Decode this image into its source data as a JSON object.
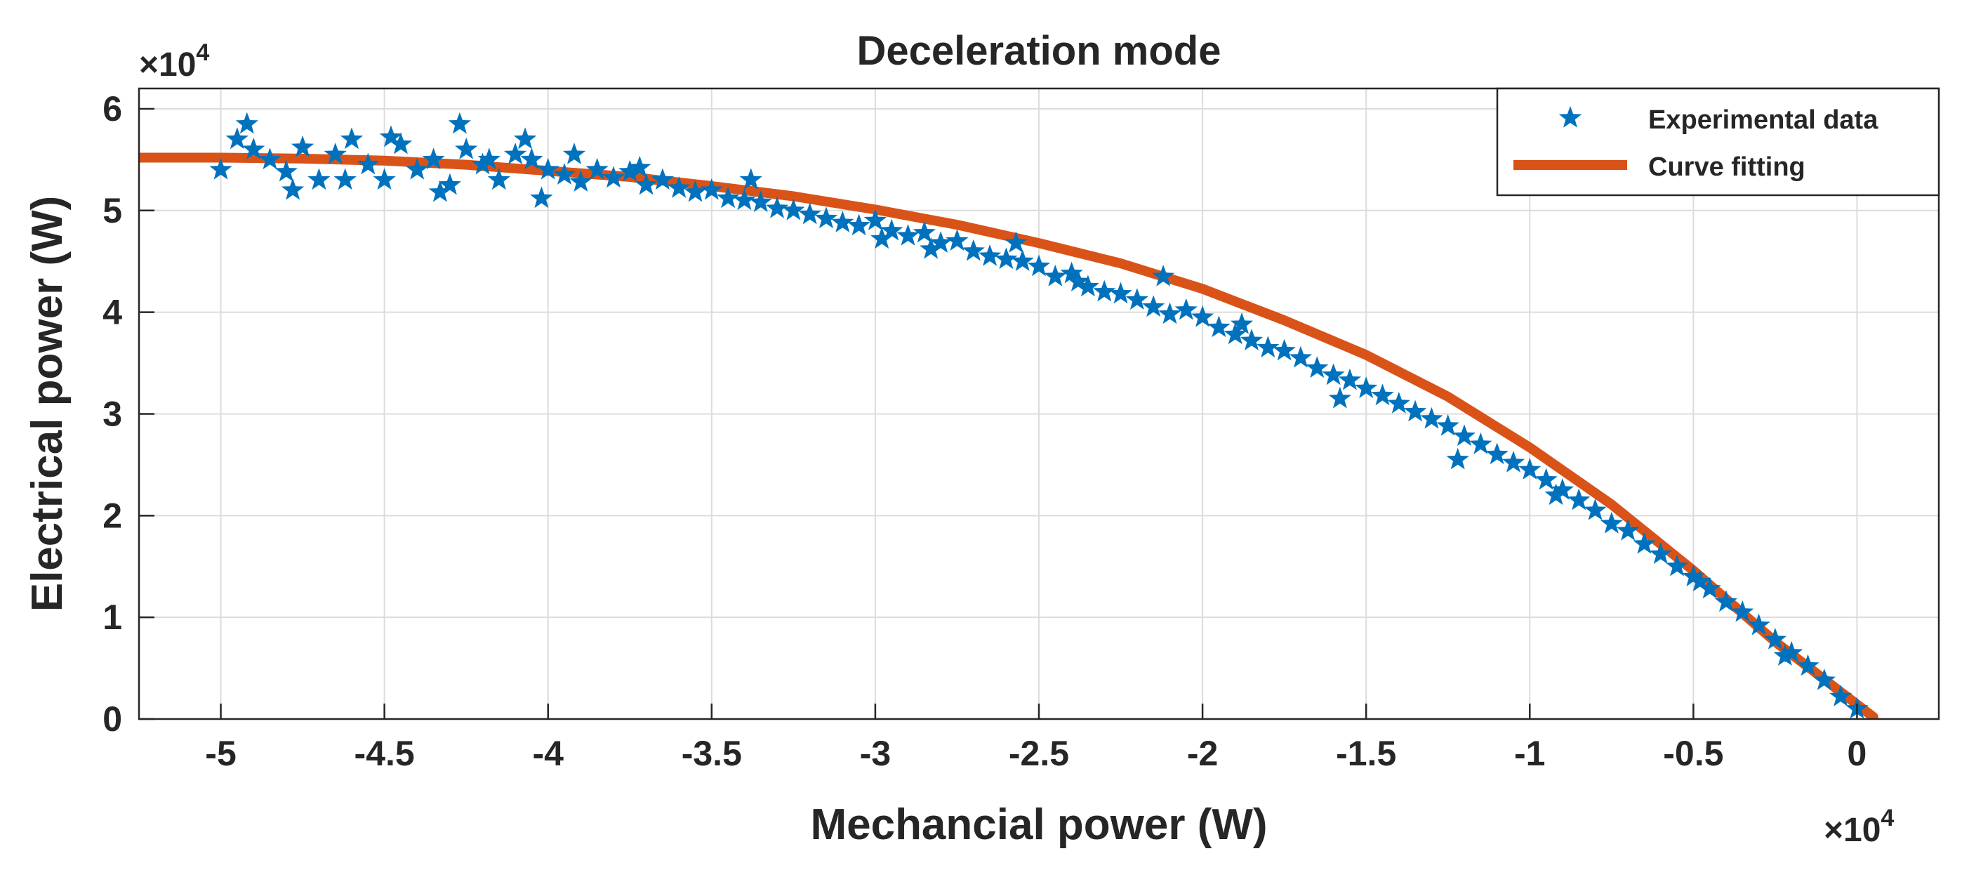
{
  "chart_data": {
    "type": "scatter",
    "title": "Deceleration mode",
    "xlabel": "Mechancial power (W)",
    "ylabel": "Electrical power (W)",
    "x_multiplier": "×10",
    "x_multiplier_exp": "4",
    "y_multiplier": "×10",
    "y_multiplier_exp": "4",
    "xlim": [
      -5.25,
      0.25
    ],
    "ylim": [
      0,
      6.2
    ],
    "xticks": [
      -5,
      -4.5,
      -4,
      -3.5,
      -3,
      -2.5,
      -2,
      -1.5,
      -1,
      -0.5,
      0
    ],
    "xtick_labels": [
      "-5",
      "-4.5",
      "-4",
      "-3.5",
      "-3",
      "-2.5",
      "-2",
      "-1.5",
      "-1",
      "-0.5",
      "0"
    ],
    "yticks": [
      0,
      1,
      2,
      3,
      4,
      5,
      6
    ],
    "ytick_labels": [
      "0",
      "1",
      "2",
      "3",
      "4",
      "5",
      "6"
    ],
    "grid": true,
    "legend_position": "top-right",
    "units_note": "values in units of 10^4 W",
    "series": [
      {
        "name": "Experimental data",
        "kind": "scatter",
        "marker": "star",
        "color": "#0072BD",
        "x": [
          -5.0,
          -4.95,
          -4.9,
          -4.85,
          -4.8,
          -4.75,
          -4.7,
          -4.65,
          -4.6,
          -4.55,
          -4.5,
          -4.45,
          -4.4,
          -4.35,
          -4.3,
          -4.25,
          -4.2,
          -4.15,
          -4.1,
          -4.05,
          -4.0,
          -3.95,
          -3.9,
          -3.85,
          -3.8,
          -3.75,
          -3.7,
          -3.65,
          -3.6,
          -3.55,
          -3.5,
          -3.45,
          -3.4,
          -3.35,
          -3.3,
          -3.25,
          -3.2,
          -3.15,
          -3.1,
          -3.05,
          -3.0,
          -2.95,
          -2.9,
          -2.85,
          -2.8,
          -2.75,
          -2.7,
          -2.65,
          -2.6,
          -2.55,
          -2.5,
          -2.45,
          -2.4,
          -2.35,
          -2.3,
          -2.25,
          -2.2,
          -2.15,
          -2.1,
          -2.05,
          -2.0,
          -1.95,
          -1.9,
          -1.85,
          -1.8,
          -1.75,
          -1.7,
          -1.65,
          -1.6,
          -1.55,
          -1.5,
          -1.45,
          -1.4,
          -1.35,
          -1.3,
          -1.25,
          -1.2,
          -1.15,
          -1.1,
          -1.05,
          -1.0,
          -0.95,
          -0.9,
          -0.85,
          -0.8,
          -0.75,
          -0.7,
          -0.65,
          -0.6,
          -0.55,
          -0.5,
          -0.45,
          -0.4,
          -0.35,
          -0.3,
          -0.25,
          -0.2,
          -0.15,
          -0.1,
          -0.05,
          0.0,
          -4.92,
          -4.78,
          -4.62,
          -4.48,
          -4.33,
          -4.27,
          -4.18,
          -4.07,
          -4.02,
          -3.92,
          -3.72,
          -3.38,
          -2.98,
          -2.83,
          -2.57,
          -2.38,
          -2.12,
          -1.88,
          -1.58,
          -1.22,
          -0.92,
          -0.48,
          -0.22
        ],
        "y": [
          5.4,
          5.7,
          5.6,
          5.5,
          5.38,
          5.62,
          5.3,
          5.55,
          5.7,
          5.45,
          5.3,
          5.65,
          5.4,
          5.5,
          5.25,
          5.6,
          5.45,
          5.3,
          5.55,
          5.5,
          5.4,
          5.35,
          5.28,
          5.4,
          5.32,
          5.38,
          5.25,
          5.3,
          5.22,
          5.18,
          5.2,
          5.12,
          5.1,
          5.08,
          5.02,
          5.0,
          4.96,
          4.92,
          4.88,
          4.85,
          4.9,
          4.8,
          4.75,
          4.78,
          4.68,
          4.7,
          4.6,
          4.55,
          4.52,
          4.5,
          4.45,
          4.35,
          4.38,
          4.25,
          4.2,
          4.18,
          4.12,
          4.05,
          3.98,
          4.02,
          3.95,
          3.85,
          3.78,
          3.72,
          3.65,
          3.62,
          3.55,
          3.45,
          3.38,
          3.33,
          3.25,
          3.18,
          3.1,
          3.02,
          2.95,
          2.88,
          2.78,
          2.7,
          2.6,
          2.52,
          2.45,
          2.35,
          2.25,
          2.15,
          2.05,
          1.92,
          1.85,
          1.72,
          1.62,
          1.5,
          1.4,
          1.28,
          1.15,
          1.05,
          0.92,
          0.78,
          0.65,
          0.52,
          0.38,
          0.22,
          0.1,
          5.85,
          5.2,
          5.3,
          5.72,
          5.18,
          5.85,
          5.5,
          5.7,
          5.12,
          5.55,
          5.42,
          5.3,
          4.72,
          4.62,
          4.68,
          4.3,
          4.35,
          3.88,
          3.15,
          2.55,
          2.2,
          1.35,
          0.62
        ]
      },
      {
        "name": "Curve fitting",
        "kind": "line",
        "color": "#D95319",
        "x": [
          -5.25,
          -5.0,
          -4.75,
          -4.5,
          -4.25,
          -4.0,
          -3.75,
          -3.5,
          -3.25,
          -3.0,
          -2.75,
          -2.5,
          -2.25,
          -2.0,
          -1.75,
          -1.5,
          -1.25,
          -1.0,
          -0.75,
          -0.5,
          -0.25,
          0.05
        ],
        "y": [
          5.52,
          5.52,
          5.51,
          5.49,
          5.45,
          5.39,
          5.33,
          5.24,
          5.14,
          5.01,
          4.86,
          4.68,
          4.48,
          4.23,
          3.92,
          3.58,
          3.17,
          2.67,
          2.11,
          1.46,
          0.76,
          0.02
        ]
      }
    ]
  }
}
